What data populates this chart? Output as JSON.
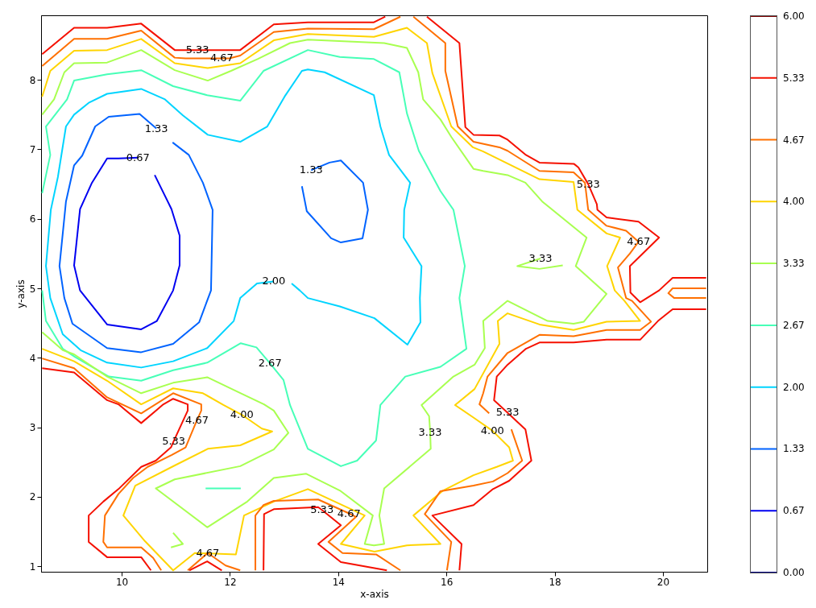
{
  "chart_data": {
    "type": "line",
    "xlabel": "x-axis",
    "ylabel": "y-axis",
    "legend": "right",
    "xlim": [
      8.51,
      20.82
    ],
    "ylim": [
      0.92,
      8.93
    ],
    "xticks": [
      10,
      12,
      14,
      16,
      18,
      20
    ],
    "yticks": [
      1,
      2,
      3,
      4,
      5,
      6,
      7,
      8
    ],
    "series": [
      {
        "name": "0.00",
        "color": "#00007f"
      },
      {
        "name": "0.67",
        "color": "#0000f1",
        "x": [
          10.3,
          9.94,
          9.73,
          9.45,
          9.23,
          9.12,
          9.23,
          9.73,
          10.36,
          10.65,
          10.95,
          11.07,
          11.07,
          10.92,
          10.61
        ],
        "values": [
          6.88,
          6.87,
          6.87,
          6.52,
          6.14,
          5.33,
          4.97,
          4.48,
          4.41,
          4.53,
          4.97,
          5.33,
          5.76,
          6.14,
          6.63
        ]
      },
      {
        "name": "1.33",
        "color": "#0063ff",
        "x": [
          10.64,
          10.33,
          9.76,
          9.51,
          9.27,
          9.12,
          8.97,
          8.85,
          8.94,
          9.09,
          9.73,
          10.36,
          10.95,
          11.43,
          11.65,
          11.68,
          11.5,
          11.24,
          10.94
        ],
        "values": [
          7.3,
          7.51,
          7.47,
          7.33,
          6.91,
          6.77,
          6.25,
          5.32,
          4.86,
          4.49,
          4.14,
          4.08,
          4.2,
          4.51,
          4.97,
          6.13,
          6.52,
          6.92,
          7.1
        ]
      },
      {
        "color": "#0063ff",
        "x": [
          13.5,
          13.84,
          14.05,
          14.46,
          14.55,
          14.45,
          14.05,
          13.87,
          13.42,
          13.33
        ],
        "values": [
          6.7,
          6.81,
          6.84,
          6.52,
          6.13,
          5.72,
          5.66,
          5.72,
          6.11,
          6.47
        ]
      },
      {
        "name": "2.00",
        "color": "#00d4ff",
        "x": [
          12.81,
          12.5,
          12.19,
          12.07,
          11.58,
          10.95,
          10.36,
          9.73,
          9.24,
          8.91,
          8.68,
          8.6,
          8.69,
          8.82,
          8.97,
          9.12,
          9.39,
          9.73,
          10.36,
          10.8,
          11.13,
          11.59,
          12.19,
          12.69,
          13.01,
          13.33,
          13.44,
          13.75,
          14.66,
          14.78,
          14.94,
          15.33,
          15.22,
          15.21,
          15.54,
          15.51,
          15.52,
          15.28,
          14.67,
          14.03,
          13.44,
          13.29,
          13.14
        ],
        "values": [
          5.1,
          5.07,
          4.86,
          4.53,
          4.14,
          3.95,
          3.86,
          3.93,
          4.11,
          4.34,
          4.86,
          5.32,
          6.13,
          6.6,
          7.33,
          7.5,
          7.67,
          7.8,
          7.87,
          7.72,
          7.49,
          7.21,
          7.11,
          7.33,
          7.76,
          8.13,
          8.15,
          8.11,
          7.78,
          7.33,
          6.92,
          6.52,
          6.13,
          5.73,
          5.32,
          4.86,
          4.51,
          4.19,
          4.57,
          4.74,
          4.86,
          4.97,
          5.07
        ]
      },
      {
        "name": "2.67",
        "color": "#47ffb7",
        "x": [
          8.53,
          8.6,
          8.91,
          9.14,
          9.76,
          10.36,
          10.95,
          11.58,
          12.2,
          12.49,
          12.74,
          12.99,
          13.11,
          13.44,
          14.05,
          14.35,
          14.7,
          14.78,
          15.24,
          15.89,
          16.37,
          16.24,
          16.34,
          16.13,
          15.89,
          15.49,
          15.27,
          15.13,
          14.66,
          14.03,
          13.44,
          12.62,
          12.19,
          11.58,
          10.95,
          10.36,
          9.73,
          9.12,
          8.99,
          8.6,
          8.68,
          8.53
        ],
        "values": [
          4.97,
          4.53,
          4.13,
          4.01,
          3.73,
          3.67,
          3.82,
          3.93,
          4.21,
          4.15,
          3.92,
          3.68,
          3.32,
          2.69,
          2.44,
          2.52,
          2.81,
          3.32,
          3.73,
          3.87,
          4.13,
          4.86,
          5.32,
          6.13,
          6.4,
          6.98,
          7.52,
          8.11,
          8.3,
          8.33,
          8.43,
          8.13,
          7.7,
          7.78,
          7.91,
          8.14,
          8.08,
          7.99,
          7.72,
          7.33,
          6.92,
          6.37
        ]
      },
      {
        "color": "#47ffb7",
        "x": [
          11.55,
          12.2
        ],
        "values": [
          2.12,
          2.12
        ]
      },
      {
        "name": "3.33",
        "color": "#a8ff50",
        "x": [
          8.53,
          8.91,
          9.12,
          9.73,
          10.36,
          10.95,
          11.58,
          12.2,
          12.63,
          12.81,
          13.08,
          12.81,
          12.19,
          10.98,
          10.63,
          11.58,
          12.32,
          12.81,
          13.41,
          14.03,
          14.64,
          14.49,
          14.66,
          14.85,
          14.76,
          14.85,
          15.71,
          15.7,
          15.68,
          15.54,
          16.13,
          16.52,
          16.71,
          16.68,
          17.13,
          17.87,
          18.35,
          18.54,
          18.96,
          18.39,
          18.59,
          17.77,
          17.46,
          17.13,
          16.68,
          16.5,
          16.09,
          15.89,
          15.57,
          15.48,
          15.27,
          14.85,
          13.44,
          13.11,
          12.51,
          12.02,
          11.59,
          10.98,
          10.36,
          9.73,
          9.12,
          8.94,
          8.75,
          8.53
        ],
        "values": [
          4.37,
          4.11,
          4.05,
          3.73,
          3.49,
          3.64,
          3.72,
          3.49,
          3.33,
          3.24,
          2.92,
          2.68,
          2.44,
          2.25,
          2.12,
          1.56,
          1.93,
          2.27,
          2.33,
          2.09,
          1.73,
          1.32,
          1.3,
          1.32,
          1.73,
          2.12,
          2.69,
          2.93,
          3.16,
          3.32,
          3.73,
          3.9,
          4.14,
          4.53,
          4.82,
          4.53,
          4.49,
          4.52,
          4.92,
          5.32,
          5.73,
          6.25,
          6.52,
          6.63,
          6.69,
          6.72,
          7.18,
          7.43,
          7.72,
          8.11,
          8.46,
          8.53,
          8.58,
          8.53,
          8.3,
          8.13,
          7.99,
          8.14,
          8.43,
          8.25,
          8.24,
          8.11,
          7.72,
          7.5
        ]
      },
      {
        "color": "#a8ff50",
        "x": [
          17.74,
          17.31,
          17.72,
          18.15
        ],
        "values": [
          5.43,
          5.32,
          5.28,
          5.33
        ]
      },
      {
        "color": "#a8ff50",
        "x": [
          10.95,
          11.13,
          10.91
        ],
        "values": [
          1.48,
          1.32,
          1.27
        ]
      },
      {
        "name": "4.00",
        "color": "#ffd400",
        "x": [
          8.53,
          9.12,
          9.73,
          10.36,
          10.95,
          11.5,
          11.88,
          12.22,
          12.59,
          12.78,
          12.19,
          11.59,
          10.98,
          10.25,
          10.03,
          10.43,
          10.95,
          11.35,
          12.11,
          12.26,
          12.81,
          13.44,
          14.49,
          14.05,
          14.67,
          15.27,
          15.89,
          15.39,
          15.94,
          16.5,
          16.93,
          17.23,
          17.16,
          16.85,
          16.5,
          16.16,
          16.52,
          16.98,
          16.95,
          17.13,
          17.72,
          18.35,
          18.96,
          19.58,
          19.29,
          19.11,
          18.97,
          19.21,
          18.96,
          18.42,
          18.35,
          17.72,
          16.68,
          16.49,
          16.09,
          15.74,
          15.64,
          15.27,
          14.66,
          13.44,
          12.81,
          12.19,
          11.59,
          10.98,
          10.36,
          9.73,
          9.12,
          8.68,
          8.53
        ],
        "values": [
          4.13,
          3.95,
          3.67,
          3.33,
          3.56,
          3.49,
          3.32,
          3.18,
          2.98,
          2.94,
          2.74,
          2.69,
          2.45,
          2.16,
          1.73,
          1.36,
          0.94,
          1.19,
          1.17,
          1.73,
          1.93,
          2.11,
          1.73,
          1.32,
          1.21,
          1.3,
          1.32,
          1.73,
          2.09,
          2.31,
          2.43,
          2.52,
          2.71,
          2.95,
          3.14,
          3.32,
          3.55,
          4.2,
          4.53,
          4.64,
          4.48,
          4.4,
          4.52,
          4.53,
          4.82,
          4.97,
          5.32,
          5.73,
          5.79,
          6.13,
          6.53,
          6.57,
          6.97,
          7.03,
          7.33,
          8.1,
          8.53,
          8.75,
          8.62,
          8.66,
          8.57,
          8.24,
          8.17,
          8.24,
          8.59,
          8.43,
          8.42,
          8.13,
          7.76
        ]
      },
      {
        "name": "4.67",
        "color": "#ff7000",
        "x": [
          8.53,
          9.12,
          9.73,
          10.36,
          10.98,
          11.18,
          11.85,
          11.99,
          12.19,
          12.81,
          13.44,
          14.66,
          15.15
        ],
        "values": [
          8.2,
          8.59,
          8.59,
          8.71,
          8.32,
          8.31,
          8.31,
          8.31,
          8.35,
          8.69,
          8.74,
          8.73,
          8.91
        ]
      },
      {
        "color": "#ff7000",
        "x": [
          15.39,
          15.98,
          15.98,
          16.21,
          16.5,
          16.98,
          17.13,
          17.72,
          18.35,
          18.56,
          18.62,
          18.96,
          19.32,
          19.55,
          19.39,
          19.17,
          19.32,
          19.43,
          19.78,
          19.58,
          18.96,
          18.35,
          17.72,
          17.13,
          16.76,
          16.68,
          16.61,
          16.79
        ],
        "values": [
          8.91,
          8.53,
          8.13,
          7.33,
          7.11,
          7.03,
          6.98,
          6.69,
          6.67,
          6.52,
          6.13,
          5.9,
          5.83,
          5.67,
          5.5,
          5.3,
          4.86,
          4.82,
          4.52,
          4.4,
          4.4,
          4.31,
          4.33,
          4.07,
          3.73,
          3.49,
          3.33,
          3.2
        ]
      },
      {
        "color": "#ff7000",
        "x": [
          17.2,
          17.4,
          17.13,
          16.86,
          16.5,
          15.89,
          15.6,
          16.09,
          16.01
        ],
        "values": [
          2.97,
          2.52,
          2.34,
          2.22,
          2.16,
          2.08,
          1.75,
          1.35,
          0.94
        ]
      },
      {
        "color": "#ff7000",
        "x": [
          15.15,
          14.7,
          14.08,
          13.82,
          14.33,
          14.2,
          13.63,
          12.81,
          12.62,
          12.47,
          12.47
        ],
        "values": [
          0.94,
          1.17,
          1.19,
          1.35,
          1.71,
          1.76,
          1.96,
          1.94,
          1.88,
          1.73,
          0.94
        ]
      },
      {
        "color": "#ff7000",
        "x": [
          8.53,
          9.12,
          9.73,
          10.36,
          10.95,
          11.47,
          11.47,
          11.39,
          11.18,
          10.92,
          10.48,
          10.21,
          9.94,
          9.69,
          9.66,
          9.73,
          10.36,
          10.58,
          10.73
        ],
        "values": [
          3.99,
          3.85,
          3.43,
          3.2,
          3.49,
          3.33,
          3.24,
          3.1,
          2.71,
          2.6,
          2.43,
          2.27,
          2.04,
          1.73,
          1.35,
          1.27,
          1.27,
          1.12,
          0.94
        ]
      },
      {
        "color": "#ff7000",
        "x": [
          11.22,
          11.59,
          11.92,
          12.19
        ],
        "values": [
          0.94,
          1.19,
          1.01,
          0.94
        ]
      },
      {
        "color": "#ff7000",
        "x": [
          20.8,
          20.18,
          20.1,
          20.21,
          20.8
        ],
        "values": [
          5.0,
          5.0,
          4.93,
          4.86,
          4.86
        ]
      },
      {
        "name": "5.33",
        "color": "#f51000",
        "x": [
          8.53,
          9.12,
          9.73,
          10.36,
          10.98,
          11.18,
          11.4,
          11.99,
          12.19,
          12.81,
          13.44,
          14.66,
          14.87
        ],
        "values": [
          8.37,
          8.75,
          8.75,
          8.81,
          8.43,
          8.43,
          8.43,
          8.43,
          8.43,
          8.8,
          8.83,
          8.83,
          8.91
        ]
      },
      {
        "color": "#f51000",
        "x": [
          15.64,
          16.24,
          16.35,
          16.5,
          16.98,
          17.13,
          17.47,
          17.72,
          18.36,
          18.44,
          18.62,
          18.78,
          18.79,
          18.96,
          19.55,
          19.93,
          19.39,
          19.4,
          19.58,
          19.93,
          20.18,
          20.8
        ],
        "values": [
          8.91,
          8.53,
          7.32,
          7.21,
          7.2,
          7.14,
          6.92,
          6.81,
          6.79,
          6.74,
          6.5,
          6.21,
          6.13,
          6.02,
          5.96,
          5.73,
          5.32,
          4.94,
          4.8,
          4.97,
          5.15,
          5.15
        ]
      },
      {
        "color": "#f51000",
        "x": [
          20.8,
          20.18,
          19.91,
          19.58,
          18.96,
          18.35,
          17.72,
          17.47,
          17.13,
          16.93,
          16.88,
          17.13,
          17.46,
          17.57,
          17.16,
          16.86,
          16.5,
          15.74,
          16.28,
          16.24
        ],
        "values": [
          4.7,
          4.7,
          4.53,
          4.26,
          4.26,
          4.22,
          4.22,
          4.13,
          3.9,
          3.73,
          3.39,
          3.21,
          2.97,
          2.52,
          2.23,
          2.11,
          1.88,
          1.73,
          1.32,
          0.94
        ]
      },
      {
        "color": "#f51000",
        "x": [
          14.9,
          14.05,
          13.63,
          14.05,
          13.7,
          13.63,
          12.81,
          12.63,
          12.62
        ],
        "values": [
          0.94,
          1.06,
          1.32,
          1.59,
          1.81,
          1.85,
          1.82,
          1.75,
          0.94
        ]
      },
      {
        "color": "#f51000",
        "x": [
          8.53,
          9.12,
          9.73,
          9.94,
          10.36,
          10.77,
          10.95,
          11.22,
          11.22,
          10.96,
          10.91,
          10.63,
          10.36,
          9.94,
          9.66,
          9.39,
          9.39,
          9.73,
          10.36,
          10.54
        ],
        "values": [
          3.85,
          3.79,
          3.39,
          3.33,
          3.06,
          3.33,
          3.41,
          3.33,
          3.24,
          2.8,
          2.71,
          2.52,
          2.43,
          2.11,
          1.93,
          1.73,
          1.35,
          1.13,
          1.13,
          0.94
        ]
      },
      {
        "color": "#f51000",
        "x": [
          11.25,
          11.58,
          11.85
        ],
        "values": [
          0.94,
          1.07,
          0.94
        ]
      },
      {
        "name": "6.00",
        "color": "#7f0000"
      }
    ],
    "annotations": [
      {
        "text": "5.33",
        "x": 11.4,
        "y": 8.43
      },
      {
        "text": "4.67",
        "x": 11.85,
        "y": 8.31
      },
      {
        "text": "1.33",
        "x": 10.64,
        "y": 7.3
      },
      {
        "text": "0.67",
        "x": 10.3,
        "y": 6.88
      },
      {
        "text": "1.33",
        "x": 13.5,
        "y": 6.7
      },
      {
        "text": "2.00",
        "x": 12.81,
        "y": 5.1
      },
      {
        "text": "5.33",
        "x": 18.62,
        "y": 6.5
      },
      {
        "text": "4.67",
        "x": 19.55,
        "y": 5.67
      },
      {
        "text": "3.33",
        "x": 17.74,
        "y": 5.43
      },
      {
        "text": "2.67",
        "x": 12.74,
        "y": 3.92
      },
      {
        "text": "4.00",
        "x": 12.22,
        "y": 3.18
      },
      {
        "text": "5.33",
        "x": 10.96,
        "y": 2.8
      },
      {
        "text": "4.67",
        "x": 11.39,
        "y": 3.1
      },
      {
        "text": "3.33",
        "x": 15.7,
        "y": 2.93
      },
      {
        "text": "4.00",
        "x": 16.85,
        "y": 2.95
      },
      {
        "text": "5.33",
        "x": 17.13,
        "y": 3.21
      },
      {
        "text": "4.67",
        "x": 14.2,
        "y": 1.76
      },
      {
        "text": "5.33",
        "x": 13.7,
        "y": 1.81
      },
      {
        "text": "4.67",
        "x": 11.59,
        "y": 1.19
      }
    ]
  }
}
